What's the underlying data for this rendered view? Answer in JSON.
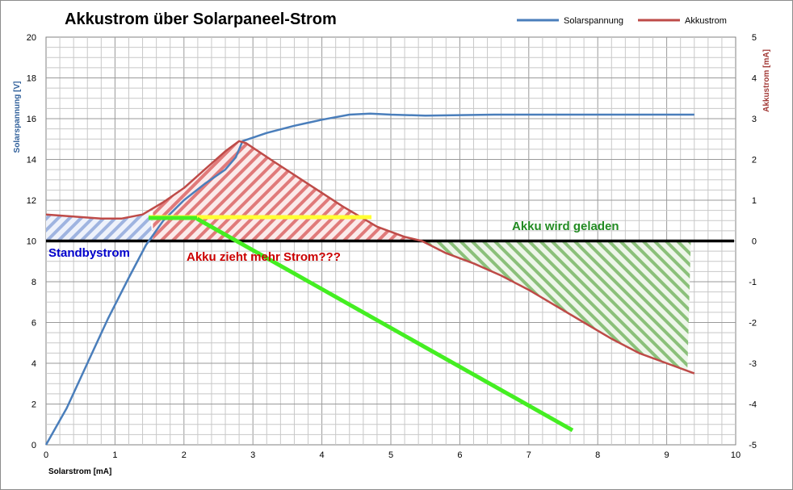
{
  "chart_data": {
    "type": "line",
    "title": "Akkustrom über Solarpaneel-Strom",
    "xlabel": "Solarstrom [mA]",
    "ylabel_left": "Solarspannung [V]",
    "ylabel_right": "Akkustrom [mA]",
    "xlim": [
      0,
      10
    ],
    "ylim_left": [
      0,
      20
    ],
    "ylim_right": [
      -5,
      5
    ],
    "x_ticks": [
      "0",
      "1",
      "2",
      "3",
      "4",
      "5",
      "6",
      "7",
      "8",
      "9",
      "10"
    ],
    "y_ticks_left": [
      "0",
      "2",
      "4",
      "6",
      "8",
      "10",
      "12",
      "14",
      "16",
      "18",
      "20"
    ],
    "y_ticks_right": [
      "-5",
      "-4",
      "-3",
      "-2",
      "-1",
      "0",
      "1",
      "2",
      "3",
      "4",
      "5"
    ],
    "grid": true,
    "legend_position": "top-right",
    "series": [
      {
        "name": "Solarspannung",
        "axis": "left",
        "color": "#4a7ebb",
        "points": [
          [
            0,
            0
          ],
          [
            0.3,
            1.8
          ],
          [
            0.6,
            4
          ],
          [
            0.9,
            6.2
          ],
          [
            1.2,
            8.2
          ],
          [
            1.45,
            9.8
          ],
          [
            1.7,
            11
          ],
          [
            2,
            12
          ],
          [
            2.3,
            12.8
          ],
          [
            2.6,
            13.5
          ],
          [
            2.75,
            14.1
          ],
          [
            2.85,
            14.9
          ],
          [
            3.2,
            15.3
          ],
          [
            3.6,
            15.65
          ],
          [
            4,
            15.95
          ],
          [
            4.4,
            16.2
          ],
          [
            4.7,
            16.25
          ],
          [
            5,
            16.2
          ],
          [
            5.5,
            16.15
          ],
          [
            6.5,
            16.2
          ],
          [
            7.5,
            16.2
          ],
          [
            8.5,
            16.2
          ],
          [
            9.4,
            16.2
          ]
        ]
      },
      {
        "name": "Akkustrom",
        "axis": "right",
        "color": "#be4b48",
        "points": [
          [
            0,
            0.65
          ],
          [
            0.4,
            0.6
          ],
          [
            0.8,
            0.55
          ],
          [
            1.1,
            0.55
          ],
          [
            1.4,
            0.65
          ],
          [
            1.7,
            0.95
          ],
          [
            2,
            1.3
          ],
          [
            2.3,
            1.75
          ],
          [
            2.6,
            2.2
          ],
          [
            2.8,
            2.45
          ],
          [
            2.9,
            2.4
          ],
          [
            3.3,
            1.95
          ],
          [
            3.8,
            1.4
          ],
          [
            4.3,
            0.85
          ],
          [
            4.8,
            0.35
          ],
          [
            5.2,
            0.1
          ],
          [
            5.45,
            0
          ],
          [
            5.8,
            -0.3
          ],
          [
            6.2,
            -0.55
          ],
          [
            6.6,
            -0.85
          ],
          [
            7,
            -1.2
          ],
          [
            7.4,
            -1.6
          ],
          [
            7.8,
            -2
          ],
          [
            8.2,
            -2.4
          ],
          [
            8.6,
            -2.75
          ],
          [
            9,
            -3
          ],
          [
            9.4,
            -3.25
          ]
        ]
      }
    ],
    "annotations": [
      {
        "text": "Standbystrom",
        "color": "#0000cc"
      },
      {
        "text": "Akku zieht mehr Strom???",
        "color": "#cc0000"
      },
      {
        "text": "Akku wird geladen",
        "color": "#228b22"
      }
    ]
  }
}
